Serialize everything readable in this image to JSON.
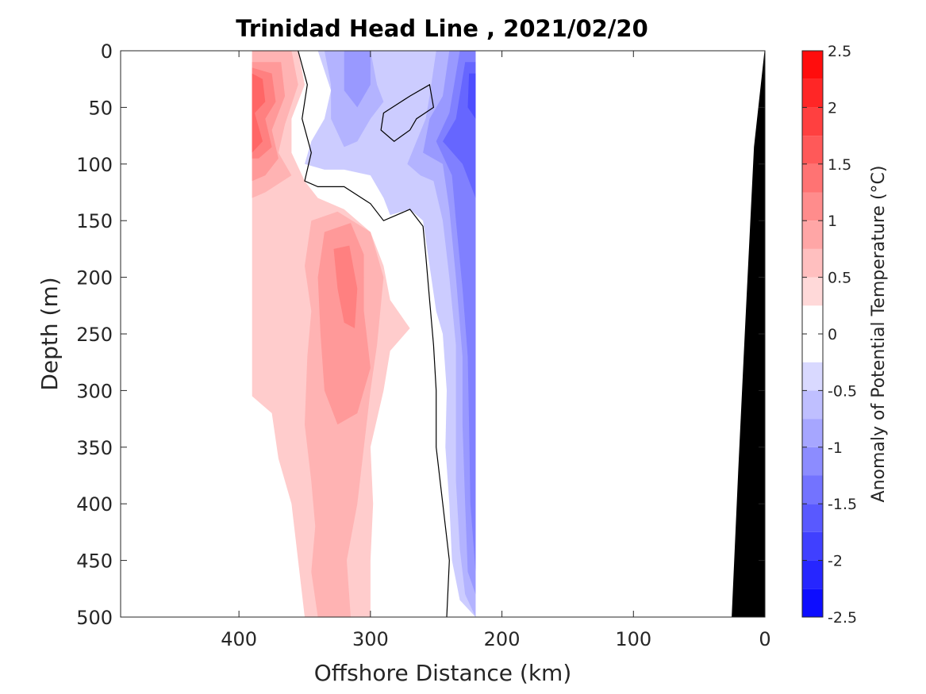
{
  "chart_data": {
    "type": "contour",
    "title": "Trinidad Head Line , 2021/02/20",
    "xlabel": "Offshore Distance (km)",
    "ylabel": "Depth (m)",
    "xlim": [
      490,
      0
    ],
    "ylim": [
      0,
      500
    ],
    "x_reversed": true,
    "y_reversed": true,
    "xticks": [
      400,
      300,
      200,
      100,
      0
    ],
    "yticks": [
      0,
      50,
      100,
      150,
      200,
      250,
      300,
      350,
      400,
      450,
      500
    ],
    "data_extent_km": [
      390,
      220
    ],
    "colorbar": {
      "label": "Anomaly of Potential Temperature (°C)",
      "range": [
        -2.5,
        2.5
      ],
      "ticks": [
        2.5,
        2,
        1.5,
        1,
        0.5,
        0,
        -0.5,
        -1,
        -1.5,
        -2,
        -2.5
      ],
      "tick_labels": [
        "2.5",
        "2",
        "1.5",
        "1",
        "0.5",
        "0",
        "-0.5",
        "-1",
        "-1.5",
        "-2",
        "-2.5"
      ],
      "levels": [
        -2.5,
        -2.25,
        -2,
        -1.75,
        -1.5,
        -1.25,
        -1,
        -0.75,
        -0.5,
        -0.25,
        0,
        0.25,
        0.5,
        0.75,
        1,
        1.25,
        1.5,
        1.75,
        2,
        2.25,
        2.5
      ],
      "colormap": "blue-white-red"
    },
    "grid": false,
    "regions": [
      {
        "level": 0.5,
        "path": [
          [
            390,
            0
          ],
          [
            355,
            0
          ],
          [
            350,
            30
          ],
          [
            360,
            60
          ],
          [
            360,
            90
          ],
          [
            350,
            115
          ],
          [
            340,
            130
          ],
          [
            320,
            140
          ],
          [
            300,
            160
          ],
          [
            290,
            190
          ],
          [
            285,
            220
          ],
          [
            270,
            245
          ],
          [
            285,
            265
          ],
          [
            290,
            300
          ],
          [
            300,
            350
          ],
          [
            298,
            400
          ],
          [
            300,
            450
          ],
          [
            300,
            500
          ],
          [
            350,
            500
          ],
          [
            355,
            450
          ],
          [
            360,
            400
          ],
          [
            370,
            360
          ],
          [
            375,
            320
          ],
          [
            390,
            305
          ],
          [
            390,
            150
          ],
          [
            360,
            145
          ],
          [
            355,
            160
          ],
          [
            358,
            175
          ],
          [
            390,
            185
          ]
        ]
      },
      {
        "level": 0.75,
        "path": [
          [
            390,
            0
          ],
          [
            360,
            0
          ],
          [
            355,
            30
          ],
          [
            365,
            65
          ],
          [
            370,
            90
          ],
          [
            360,
            110
          ],
          [
            380,
            125
          ],
          [
            390,
            130
          ]
        ]
      },
      {
        "level": 0.75,
        "path": [
          [
            345,
            150
          ],
          [
            325,
            142
          ],
          [
            300,
            160
          ],
          [
            290,
            200
          ],
          [
            295,
            260
          ],
          [
            300,
            300
          ],
          [
            305,
            350
          ],
          [
            310,
            400
          ],
          [
            318,
            450
          ],
          [
            315,
            500
          ],
          [
            340,
            500
          ],
          [
            345,
            460
          ],
          [
            342,
            420
          ],
          [
            345,
            380
          ],
          [
            350,
            330
          ],
          [
            348,
            270
          ],
          [
            345,
            230
          ],
          [
            350,
            190
          ]
        ]
      },
      {
        "level": 1.0,
        "path": [
          [
            390,
            10
          ],
          [
            368,
            10
          ],
          [
            365,
            40
          ],
          [
            375,
            70
          ],
          [
            370,
            95
          ],
          [
            380,
            110
          ],
          [
            390,
            115
          ]
        ]
      },
      {
        "level": 1.0,
        "path": [
          [
            335,
            160
          ],
          [
            315,
            152
          ],
          [
            305,
            180
          ],
          [
            305,
            230
          ],
          [
            300,
            280
          ],
          [
            310,
            320
          ],
          [
            325,
            330
          ],
          [
            335,
            300
          ],
          [
            338,
            250
          ],
          [
            340,
            200
          ]
        ]
      },
      {
        "level": 1.25,
        "path": [
          [
            390,
            15
          ],
          [
            375,
            20
          ],
          [
            372,
            45
          ],
          [
            380,
            60
          ],
          [
            375,
            85
          ],
          [
            385,
            95
          ],
          [
            390,
            95
          ]
        ]
      },
      {
        "level": 1.25,
        "path": [
          [
            328,
            175
          ],
          [
            316,
            172
          ],
          [
            310,
            210
          ],
          [
            312,
            245
          ],
          [
            320,
            240
          ],
          [
            325,
            210
          ]
        ]
      },
      {
        "level": 1.5,
        "path": [
          [
            390,
            20
          ],
          [
            382,
            25
          ],
          [
            380,
            45
          ],
          [
            388,
            55
          ],
          [
            382,
            80
          ],
          [
            390,
            90
          ]
        ]
      },
      {
        "level": 0.5,
        "path": [
          [
            295,
            55
          ],
          [
            283,
            55
          ],
          [
            280,
            65
          ],
          [
            293,
            70
          ]
        ]
      },
      {
        "level": -0.5,
        "path": [
          [
            340,
            0
          ],
          [
            220,
            0
          ],
          [
            220,
            500
          ],
          [
            232,
            485
          ],
          [
            238,
            450
          ],
          [
            240,
            400
          ],
          [
            243,
            350
          ],
          [
            242,
            300
          ],
          [
            245,
            250
          ],
          [
            250,
            230
          ],
          [
            260,
            150
          ],
          [
            270,
            140
          ],
          [
            285,
            145
          ],
          [
            290,
            130
          ],
          [
            300,
            110
          ],
          [
            320,
            105
          ],
          [
            335,
            105
          ],
          [
            350,
            100
          ],
          [
            345,
            80
          ],
          [
            335,
            60
          ],
          [
            330,
            35
          ]
        ]
      },
      {
        "level": -0.75,
        "path": [
          [
            335,
            0
          ],
          [
            300,
            0
          ],
          [
            295,
            30
          ],
          [
            290,
            45
          ],
          [
            300,
            60
          ],
          [
            310,
            80
          ],
          [
            320,
            85
          ],
          [
            330,
            60
          ],
          [
            330,
            30
          ]
        ]
      },
      {
        "level": -0.75,
        "path": [
          [
            250,
            0
          ],
          [
            220,
            0
          ],
          [
            220,
            500
          ],
          [
            228,
            480
          ],
          [
            232,
            440
          ],
          [
            235,
            380
          ],
          [
            235,
            330
          ],
          [
            235,
            260
          ],
          [
            240,
            200
          ],
          [
            245,
            150
          ],
          [
            252,
            115
          ],
          [
            262,
            110
          ],
          [
            272,
            100
          ],
          [
            265,
            80
          ],
          [
            258,
            60
          ],
          [
            255,
            40
          ]
        ]
      },
      {
        "level": -1.0,
        "path": [
          [
            320,
            0
          ],
          [
            300,
            0
          ],
          [
            300,
            30
          ],
          [
            310,
            50
          ],
          [
            320,
            35
          ]
        ]
      },
      {
        "level": -1.0,
        "path": [
          [
            240,
            0
          ],
          [
            220,
            0
          ],
          [
            220,
            480
          ],
          [
            226,
            460
          ],
          [
            228,
            400
          ],
          [
            230,
            330
          ],
          [
            230,
            270
          ],
          [
            235,
            200
          ],
          [
            240,
            140
          ],
          [
            245,
            100
          ],
          [
            260,
            90
          ],
          [
            255,
            60
          ],
          [
            245,
            40
          ]
        ]
      },
      {
        "level": -1.25,
        "path": [
          [
            232,
            0
          ],
          [
            220,
            0
          ],
          [
            220,
            460
          ],
          [
            224,
            400
          ],
          [
            225,
            330
          ],
          [
            226,
            270
          ],
          [
            230,
            210
          ],
          [
            235,
            150
          ],
          [
            238,
            110
          ],
          [
            250,
            80
          ],
          [
            240,
            55
          ]
        ]
      },
      {
        "level": -1.5,
        "path": [
          [
            228,
            10
          ],
          [
            220,
            10
          ],
          [
            220,
            130
          ],
          [
            230,
            100
          ],
          [
            245,
            80
          ],
          [
            235,
            60
          ]
        ]
      },
      {
        "level": -1.75,
        "path": [
          [
            225,
            20
          ],
          [
            220,
            20
          ],
          [
            220,
            60
          ],
          [
            226,
            50
          ]
        ]
      }
    ],
    "zero_contour": [
      [
        355,
        0
      ],
      [
        348,
        30
      ],
      [
        352,
        60
      ],
      [
        345,
        90
      ],
      [
        350,
        115
      ],
      [
        340,
        120
      ],
      [
        320,
        120
      ],
      [
        300,
        135
      ],
      [
        290,
        150
      ],
      [
        280,
        145
      ],
      [
        270,
        140
      ],
      [
        260,
        155
      ],
      [
        258,
        180
      ],
      [
        255,
        220
      ],
      [
        252,
        260
      ],
      [
        250,
        300
      ],
      [
        250,
        350
      ],
      [
        245,
        400
      ],
      [
        240,
        450
      ],
      [
        242,
        500
      ]
    ],
    "zero_contour_loop": [
      [
        255,
        30
      ],
      [
        270,
        40
      ],
      [
        290,
        55
      ],
      [
        292,
        70
      ],
      [
        282,
        80
      ],
      [
        270,
        70
      ],
      [
        265,
        60
      ],
      [
        252,
        50
      ]
    ],
    "bathymetry": [
      [
        0,
        0
      ],
      [
        8,
        85
      ],
      [
        15,
        250
      ],
      [
        20,
        370
      ],
      [
        25,
        500
      ],
      [
        0,
        500
      ]
    ]
  }
}
